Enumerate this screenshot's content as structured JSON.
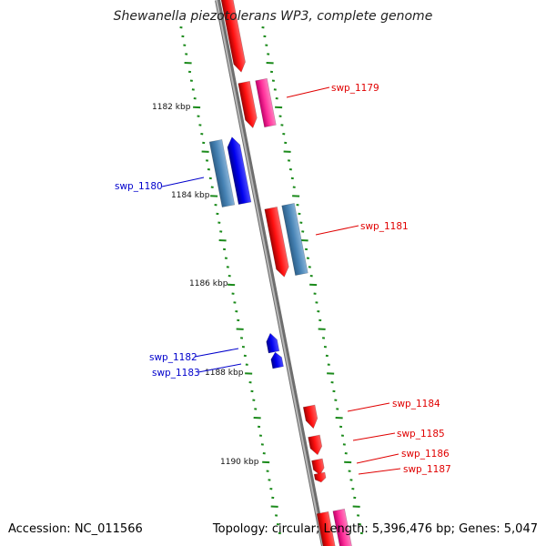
{
  "title": "Shewanella piezotolerans WP3, complete genome",
  "accession": "Accession: NC_011566",
  "summary": "Topology: circular; Length: 5,396,476 bp; Genes: 5,047",
  "colors": {
    "backbone": "#8c8c8c",
    "ticks": "#1a8a1a",
    "gene_red": "#ff0000",
    "gene_magenta": "#ff2f9a",
    "gene_blue": "#0000ee",
    "gene_steel": "#4682b4",
    "label_red": "#e00000",
    "label_blue": "#0000cc"
  },
  "kbp_labels": [
    "1182 kbp",
    "1184 kbp",
    "1186 kbp",
    "1188 kbp",
    "1190 kbp"
  ],
  "gene_labels": [
    "swp_1179",
    "swp_1180",
    "swp_1181",
    "swp_1182",
    "swp_1183",
    "swp_1184",
    "swp_1185",
    "swp_1186",
    "swp_1187"
  ]
}
